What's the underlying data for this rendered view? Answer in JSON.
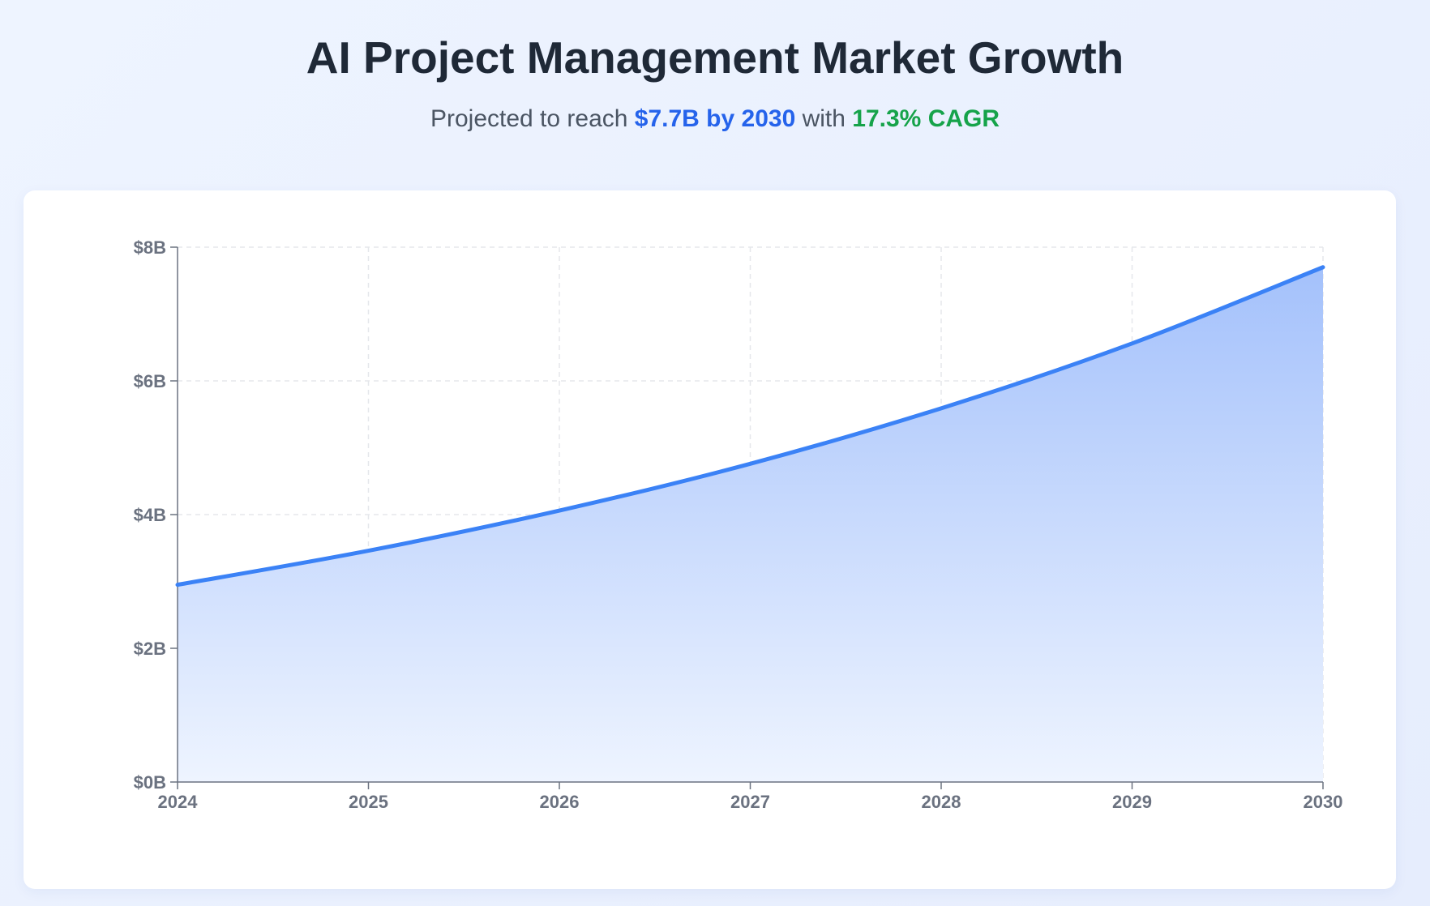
{
  "header": {
    "title": "AI Project Management Market Growth",
    "subtitle_prefix": "Projected to reach ",
    "subtitle_highlight_value": "$7.7B by 2030",
    "subtitle_middle": " with ",
    "subtitle_highlight_cagr": "17.3% CAGR"
  },
  "colors": {
    "line": "#3b82f6",
    "area_top": "#a4c1fb",
    "area_bottom": "#eef4ff",
    "highlight_blue": "#2563eb",
    "highlight_green": "#16a34a"
  },
  "chart_data": {
    "type": "area",
    "title": "",
    "xlabel": "",
    "ylabel": "",
    "x": [
      2024,
      2025,
      2026,
      2027,
      2028,
      2029,
      2030
    ],
    "series": [
      {
        "values": [
          2.95,
          3.46,
          4.06,
          4.76,
          5.59,
          6.56,
          7.7
        ]
      }
    ],
    "ylim": [
      0,
      8
    ],
    "xlim": [
      2024,
      2030
    ],
    "y_ticks": [
      0,
      2,
      4,
      6,
      8
    ],
    "y_tick_labels": [
      "$0B",
      "$2B",
      "$4B",
      "$6B",
      "$8B"
    ],
    "x_tick_labels": [
      "2024",
      "2025",
      "2026",
      "2027",
      "2028",
      "2029",
      "2030"
    ],
    "grid": true,
    "grid_style": "dashed",
    "legend": "none"
  }
}
